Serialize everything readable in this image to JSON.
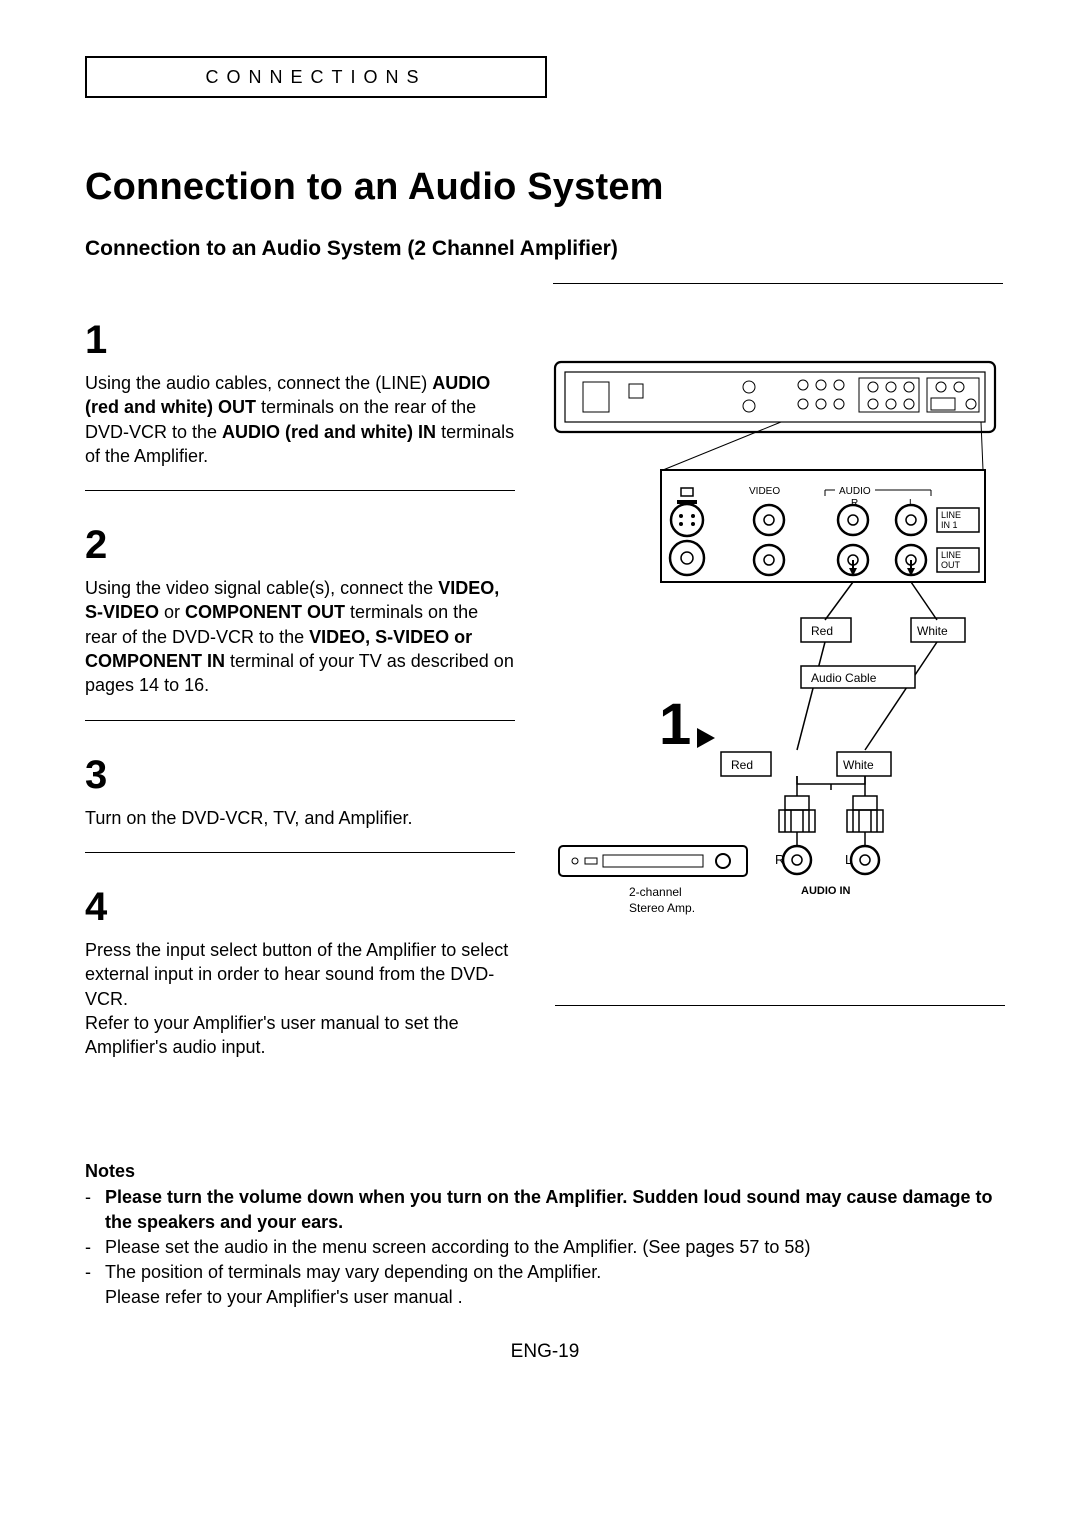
{
  "header": {
    "section_label": "CONNECTIONS"
  },
  "title": "Connection to an Audio System",
  "subtitle": "Connection to an Audio System (2 Channel Amplifier)",
  "steps": [
    {
      "num": "1",
      "html": "Using the audio cables, connect the (LINE) <span class='bold'>AUDIO (red and white) OUT</span> terminals on the rear of the DVD-VCR to the <span class='bold'>AUDIO (red and white) IN</span> terminals of the Amplifier."
    },
    {
      "num": "2",
      "html": "Using the video signal cable(s), connect the <span class='bold'>VIDEO, S-VIDEO</span> or <span class='bold'>COMPONENT OUT</span> terminals on the rear of the DVD-VCR to the <span class='bold'>VIDEO, S-VIDEO or COMPONENT IN</span> terminal of your TV as described on pages 14 to 16."
    },
    {
      "num": "3",
      "html": "Turn on the DVD-VCR, TV, and Amplifier."
    },
    {
      "num": "4",
      "html": "Press the input select button of the Amplifier to select external input in order to hear sound from the DVD-VCR.<br>Refer to your Amplifier's user manual to set the Amplifier's audio input."
    }
  ],
  "diagram": {
    "labels": {
      "video": "VIDEO",
      "audio": "AUDIO",
      "r": "R",
      "l": "L",
      "line_in1": "LINE\nIN 1",
      "line_out": "LINE\nOUT",
      "red": "Red",
      "white": "White",
      "audio_cable": "Audio Cable",
      "step_marker": "1",
      "amp_caption": "2-channel\nStereo Amp.",
      "audio_in": "AUDIO IN",
      "R": "R",
      "L": "L"
    }
  },
  "notes": {
    "heading": "Notes",
    "items": [
      {
        "bold": true,
        "text": "Please turn the volume down when you turn on the Amplifier. Sudden loud sound may cause  damage to the speakers and your ears."
      },
      {
        "bold": false,
        "text": "Please set the audio in the menu screen according to the Amplifier. (See pages 57 to 58)"
      },
      {
        "bold": false,
        "text": "The position of terminals may vary depending on the Amplifier.\nPlease refer to your Amplifier's user manual ."
      }
    ]
  },
  "page_number": "ENG-19"
}
